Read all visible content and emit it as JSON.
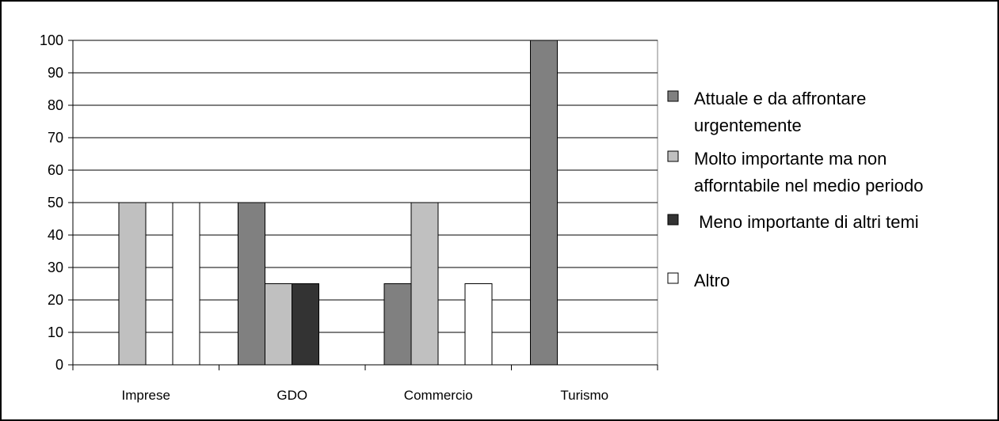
{
  "chart_data": {
    "type": "bar",
    "categories": [
      "Imprese",
      "GDO",
      "Commercio",
      "Turismo"
    ],
    "series": [
      {
        "name": "Attuale e da affrontare urgentemente",
        "legend_lines": [
          "Attuale e da affrontare",
          "urgentemente"
        ],
        "color": "#808080",
        "values": [
          0,
          50,
          25,
          100
        ]
      },
      {
        "name": "Molto importante ma non afforntabile nel medio periodo",
        "legend_lines": [
          "Molto importante ma non",
          "afforntabile nel medio periodo"
        ],
        "color": "#c0c0c0",
        "values": [
          50,
          25,
          50,
          0
        ]
      },
      {
        "name": "Meno importante di altri temi",
        "legend_lines": [
          " Meno importante di altri temi"
        ],
        "color": "#333333",
        "values": [
          0,
          25,
          0,
          0
        ]
      },
      {
        "name": "Altro",
        "legend_lines": [
          "Altro"
        ],
        "color": "#ffffff",
        "values": [
          50,
          0,
          25,
          0
        ]
      }
    ],
    "ylim": [
      0,
      100
    ],
    "yticks": [
      0,
      10,
      20,
      30,
      40,
      50,
      60,
      70,
      80,
      90,
      100
    ],
    "grid": true,
    "legend_position": "right",
    "title": "",
    "xlabel": "",
    "ylabel": ""
  }
}
